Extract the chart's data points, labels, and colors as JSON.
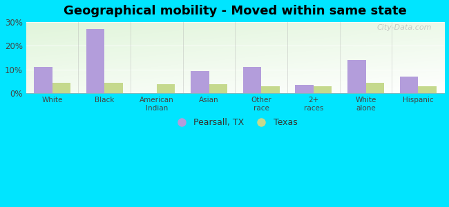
{
  "title": "Geographical mobility - Moved within same state",
  "categories": [
    "White",
    "Black",
    "American\nIndian",
    "Asian",
    "Other\nrace",
    "2+\nraces",
    "White\nalone",
    "Hispanic"
  ],
  "pearsall_values": [
    11,
    27,
    0,
    9.5,
    11,
    3.5,
    14,
    7
  ],
  "texas_values": [
    4.5,
    4.5,
    4,
    4,
    3,
    3,
    4.5,
    3
  ],
  "pearsall_color": "#b39ddb",
  "texas_color": "#c5d98d",
  "bar_width": 0.35,
  "ylim": [
    0,
    30
  ],
  "yticks": [
    0,
    10,
    20,
    30
  ],
  "ytick_labels": [
    "0%",
    "10%",
    "20%",
    "30%"
  ],
  "bg_outer": "#00e5ff",
  "title_fontsize": 13,
  "legend_label_pearsall": "Pearsall, TX",
  "legend_label_texas": "Texas",
  "watermark": "City-Data.com"
}
